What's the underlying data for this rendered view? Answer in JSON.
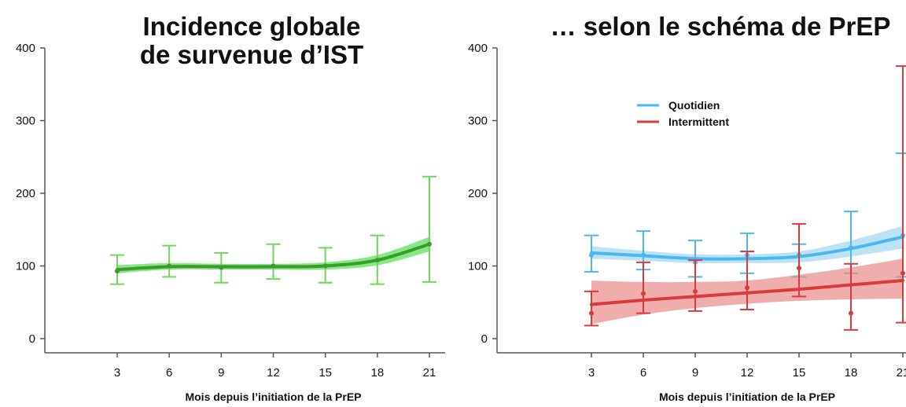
{
  "colors": {
    "global_line": "#3c9a2e",
    "global_band": "#5ee05a",
    "global_err": "#6fd65a",
    "quotidien": "#49b8ef",
    "quotidien_band": "#a6d8f3",
    "intermittent": "#d93a3a",
    "intermittent_band": "#ea8a8a",
    "axis": "#555555"
  },
  "chart_data": [
    {
      "type": "line",
      "title": [
        "Incidence globale",
        "de survenue d’IST"
      ],
      "xlabel": "Mois depuis l’initiation de la PrEP",
      "ylabel": "",
      "xlim": [
        0,
        21
      ],
      "ylim": [
        0,
        400
      ],
      "xticks": [
        3,
        6,
        9,
        12,
        15,
        18,
        21
      ],
      "yticks": [
        0,
        100,
        200,
        300,
        400
      ],
      "series": [
        {
          "key": "global",
          "x": [
            3,
            6,
            9,
            12,
            15,
            18,
            21
          ],
          "points": [
            93,
            100,
            98,
            100,
            100,
            108,
            130
          ],
          "err_low": [
            75,
            85,
            77,
            82,
            77,
            75,
            78
          ],
          "err_high": [
            115,
            128,
            118,
            130,
            125,
            142,
            223
          ],
          "curve": [
            95,
            99,
            99,
            99,
            100,
            108,
            130
          ],
          "band_low": [
            90,
            95,
            95,
            95,
            95,
            101,
            120
          ],
          "band_high": [
            101,
            104,
            103,
            103,
            105,
            115,
            140
          ]
        }
      ]
    },
    {
      "type": "line",
      "title": [
        "… selon le schéma de PrEP"
      ],
      "xlabel": "Mois depuis l’initiation de la PrEP",
      "ylabel": "",
      "xlim": [
        0,
        21
      ],
      "ylim": [
        0,
        400
      ],
      "xticks": [
        3,
        6,
        9,
        12,
        15,
        18,
        21
      ],
      "yticks": [
        0,
        100,
        200,
        300,
        400
      ],
      "legend": {
        "position": "top-left",
        "entries": [
          "Quotidien",
          "Intermittent"
        ]
      },
      "series": [
        {
          "key": "quotidien",
          "name": "Quotidien",
          "x": [
            3,
            6,
            9,
            12,
            15,
            18,
            21
          ],
          "points": [
            115,
            115,
            105,
            115,
            115,
            125,
            142
          ],
          "err_low": [
            92,
            95,
            85,
            90,
            85,
            90,
            85
          ],
          "err_high": [
            142,
            148,
            135,
            145,
            130,
            175,
            255
          ],
          "curve": [
            118,
            114,
            110,
            110,
            113,
            124,
            140
          ],
          "band_low": [
            110,
            107,
            104,
            104,
            105,
            113,
            124
          ],
          "band_high": [
            127,
            121,
            116,
            116,
            120,
            135,
            155
          ]
        },
        {
          "key": "intermittent",
          "name": "Intermittent",
          "x": [
            3,
            6,
            9,
            12,
            15,
            18,
            21
          ],
          "points": [
            35,
            62,
            65,
            70,
            97,
            35,
            90
          ],
          "err_low": [
            18,
            35,
            38,
            40,
            58,
            12,
            22
          ],
          "err_high": [
            65,
            105,
            108,
            120,
            158,
            103,
            375
          ],
          "curve": [
            47,
            53,
            58,
            63,
            68,
            74,
            80
          ],
          "band_low": [
            20,
            33,
            42,
            48,
            52,
            54,
            55
          ],
          "band_high": [
            80,
            78,
            78,
            80,
            88,
            98,
            110
          ]
        }
      ]
    }
  ]
}
